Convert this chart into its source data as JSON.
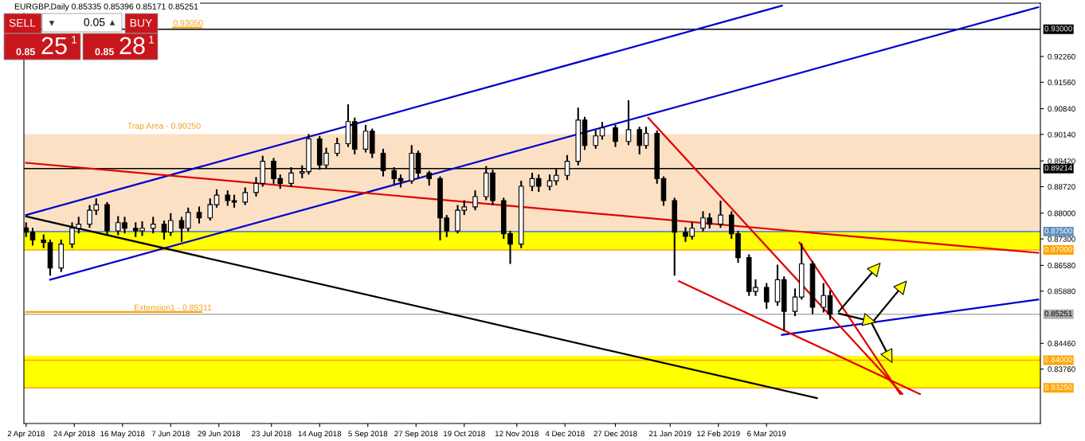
{
  "chart_data": {
    "type": "candlestick",
    "title": "EURGBP,Daily 0.85335 0.85396 0.85171 0.85251",
    "xlim": [
      "2018-04-01",
      "2019-07-09"
    ],
    "ylim": [
      0.8228,
      0.9371
    ],
    "xticks": [
      {
        "value": "2018-04-02",
        "label": "2 Apr 2018"
      },
      {
        "value": "2018-04-24",
        "label": "24 Apr 2018"
      },
      {
        "value": "2018-05-16",
        "label": "16 May 2018"
      },
      {
        "value": "2018-06-07",
        "label": "7 Jun 2018"
      },
      {
        "value": "2018-06-29",
        "label": "29 Jun 2018"
      },
      {
        "value": "2018-07-23",
        "label": "23 Jul 2018"
      },
      {
        "value": "2018-08-14",
        "label": "14 Aug 2018"
      },
      {
        "value": "2018-09-05",
        "label": "5 Sep 2018"
      },
      {
        "value": "2018-09-27",
        "label": "27 Sep 2018"
      },
      {
        "value": "2018-10-19",
        "label": "19 Oct 2018"
      },
      {
        "value": "2018-11-12",
        "label": "12 Nov 2018"
      },
      {
        "value": "2018-12-04",
        "label": "4 Dec 2018"
      },
      {
        "value": "2018-12-27",
        "label": "27 Dec 2018"
      },
      {
        "value": "2019-01-21",
        "label": "21 Jan 2019"
      },
      {
        "value": "2019-02-12",
        "label": "12 Feb 2019"
      },
      {
        "value": "2019-03-06",
        "label": "6 Mar 2019"
      }
    ],
    "yticks": [
      {
        "value": 0.9226,
        "label": "0.92260"
      },
      {
        "value": 0.9156,
        "label": "0.91560"
      },
      {
        "value": 0.9084,
        "label": "0.90840"
      },
      {
        "value": 0.9014,
        "label": "0.90140"
      },
      {
        "value": 0.8942,
        "label": "0.89420"
      },
      {
        "value": 0.8872,
        "label": "0.88720"
      },
      {
        "value": 0.88,
        "label": "0.88000"
      },
      {
        "value": 0.873,
        "label": "0.87300"
      },
      {
        "value": 0.8658,
        "label": "0.86580"
      },
      {
        "value": 0.8588,
        "label": "0.85880"
      },
      {
        "value": 0.8446,
        "label": "0.84460"
      },
      {
        "value": 0.8376,
        "label": "0.83760"
      }
    ],
    "grid": false,
    "bands": [
      {
        "axis": "y",
        "from": 0.875,
        "to": 0.9015,
        "color": "#fbe0c4"
      },
      {
        "axis": "y",
        "from": 0.87,
        "to": 0.875,
        "color": "#ffff00"
      },
      {
        "axis": "y",
        "from": 0.8325,
        "to": 0.8412,
        "color": "#ffff00"
      }
    ],
    "ref_lines": [
      {
        "axis": "y",
        "value": 0.93,
        "label": "0.93000",
        "color": "#000000"
      },
      {
        "axis": "y",
        "value": 0.89214,
        "label": "0.89214",
        "color": "#000000"
      },
      {
        "axis": "y",
        "value": 0.875,
        "label": "0.87500",
        "color": "#5b8dbb"
      },
      {
        "axis": "y",
        "value": 0.87,
        "label": "0.87000",
        "color": "#ffa500"
      },
      {
        "axis": "y",
        "value": 0.85251,
        "label": "0.85251",
        "color": "#b0b0b0"
      },
      {
        "axis": "y",
        "value": 0.84,
        "label": "0.84000",
        "color": "#ffa500"
      },
      {
        "axis": "y",
        "value": 0.8325,
        "label": "0.83250",
        "color": "#ffa500"
      }
    ],
    "series": [
      {
        "color": "#000000",
        "x": [
          "2018-04-02",
          "2018-04-05",
          "2018-04-10",
          "2018-04-13",
          "2018-04-18",
          "2018-04-23",
          "2018-04-26",
          "2018-05-01",
          "2018-05-04",
          "2018-05-09",
          "2018-05-14",
          "2018-05-17",
          "2018-05-22",
          "2018-05-25",
          "2018-05-30",
          "2018-06-04",
          "2018-06-07",
          "2018-06-12",
          "2018-06-15",
          "2018-06-20",
          "2018-06-25",
          "2018-06-28",
          "2018-07-03",
          "2018-07-06",
          "2018-07-11",
          "2018-07-16",
          "2018-07-19",
          "2018-07-24",
          "2018-07-27",
          "2018-08-01",
          "2018-08-06",
          "2018-08-09",
          "2018-08-14",
          "2018-08-17",
          "2018-08-22",
          "2018-08-27",
          "2018-08-30",
          "2018-09-04",
          "2018-09-07",
          "2018-09-12",
          "2018-09-17",
          "2018-09-20",
          "2018-09-25",
          "2018-09-28",
          "2018-10-03",
          "2018-10-08",
          "2018-10-11",
          "2018-10-16",
          "2018-10-19",
          "2018-10-24",
          "2018-10-29",
          "2018-11-01",
          "2018-11-06",
          "2018-11-09",
          "2018-11-14",
          "2018-11-19",
          "2018-11-22",
          "2018-11-27",
          "2018-11-30",
          "2018-12-05",
          "2018-12-10",
          "2018-12-13",
          "2018-12-18",
          "2018-12-21",
          "2018-12-27",
          "2019-01-02",
          "2019-01-07",
          "2019-01-10",
          "2019-01-15",
          "2019-01-18",
          "2019-01-23",
          "2019-01-28",
          "2019-01-31",
          "2019-02-05",
          "2019-02-08",
          "2019-02-13",
          "2019-02-18",
          "2019-02-21",
          "2019-02-26",
          "2019-03-01",
          "2019-03-06",
          "2019-03-11",
          "2019-03-14",
          "2019-03-19",
          "2019-03-22",
          "2019-03-27",
          "2019-04-01",
          "2019-04-04"
        ],
        "ohlc": [
          [
            0.876,
            0.8775,
            0.8735,
            0.8748
          ],
          [
            0.8748,
            0.876,
            0.8712,
            0.8727
          ],
          [
            0.8727,
            0.8742,
            0.8705,
            0.872
          ],
          [
            0.872,
            0.8728,
            0.863,
            0.8651
          ],
          [
            0.8651,
            0.8728,
            0.864,
            0.8716
          ],
          [
            0.8716,
            0.8775,
            0.8705,
            0.8759
          ],
          [
            0.8759,
            0.879,
            0.8745,
            0.877
          ],
          [
            0.877,
            0.8822,
            0.876,
            0.8808
          ],
          [
            0.8808,
            0.884,
            0.8795,
            0.8823
          ],
          [
            0.8823,
            0.883,
            0.874,
            0.8752
          ],
          [
            0.8752,
            0.8792,
            0.874,
            0.8774
          ],
          [
            0.8774,
            0.879,
            0.8745,
            0.8759
          ],
          [
            0.8759,
            0.8775,
            0.8735,
            0.8752
          ],
          [
            0.8752,
            0.8778,
            0.8738,
            0.8759
          ],
          [
            0.8759,
            0.879,
            0.8745,
            0.877
          ],
          [
            0.877,
            0.878,
            0.8728,
            0.8748
          ],
          [
            0.8748,
            0.88,
            0.8738,
            0.878
          ],
          [
            0.878,
            0.879,
            0.8722,
            0.8759
          ],
          [
            0.8759,
            0.8815,
            0.875,
            0.8802
          ],
          [
            0.8802,
            0.8818,
            0.8772,
            0.8787
          ],
          [
            0.8787,
            0.884,
            0.878,
            0.8823
          ],
          [
            0.8823,
            0.8865,
            0.8815,
            0.8849
          ],
          [
            0.8849,
            0.8862,
            0.882,
            0.8834
          ],
          [
            0.8834,
            0.885,
            0.8815,
            0.883
          ],
          [
            0.883,
            0.887,
            0.8822,
            0.8856
          ],
          [
            0.8856,
            0.8898,
            0.8845,
            0.8881
          ],
          [
            0.8881,
            0.8956,
            0.8872,
            0.8941
          ],
          [
            0.8941,
            0.895,
            0.888,
            0.8894
          ],
          [
            0.8894,
            0.8905,
            0.8866,
            0.8881
          ],
          [
            0.8881,
            0.8925,
            0.8872,
            0.8909
          ],
          [
            0.8909,
            0.893,
            0.8895,
            0.8913
          ],
          [
            0.8913,
            0.9015,
            0.8905,
            0.9002
          ],
          [
            0.9002,
            0.901,
            0.8918,
            0.8931
          ],
          [
            0.8931,
            0.8978,
            0.8922,
            0.8963
          ],
          [
            0.8963,
            0.9005,
            0.8955,
            0.8989
          ],
          [
            0.8989,
            0.9096,
            0.898,
            0.9049
          ],
          [
            0.9049,
            0.906,
            0.896,
            0.8974
          ],
          [
            0.8974,
            0.904,
            0.8965,
            0.9023
          ],
          [
            0.9023,
            0.903,
            0.895,
            0.8963
          ],
          [
            0.8963,
            0.8975,
            0.89,
            0.8916
          ],
          [
            0.8916,
            0.8925,
            0.8878,
            0.8894
          ],
          [
            0.8894,
            0.8905,
            0.887,
            0.8888
          ],
          [
            0.8888,
            0.8985,
            0.888,
            0.8963
          ],
          [
            0.8963,
            0.897,
            0.8895,
            0.8909
          ],
          [
            0.8909,
            0.8915,
            0.8875,
            0.8894
          ],
          [
            0.8894,
            0.89,
            0.8726,
            0.8787
          ],
          [
            0.8787,
            0.8795,
            0.8735,
            0.8752
          ],
          [
            0.8752,
            0.8822,
            0.8745,
            0.8808
          ],
          [
            0.8808,
            0.8835,
            0.8795,
            0.8817
          ],
          [
            0.8817,
            0.8862,
            0.8808,
            0.8845
          ],
          [
            0.8845,
            0.8928,
            0.8835,
            0.8909
          ],
          [
            0.8909,
            0.8918,
            0.8822,
            0.8834
          ],
          [
            0.8834,
            0.8842,
            0.873,
            0.8744
          ],
          [
            0.8744,
            0.8752,
            0.8662,
            0.8716
          ],
          [
            0.8716,
            0.8888,
            0.8705,
            0.8873
          ],
          [
            0.8873,
            0.891,
            0.886,
            0.8894
          ],
          [
            0.8894,
            0.8905,
            0.8858,
            0.8873
          ],
          [
            0.8873,
            0.8905,
            0.8862,
            0.8888
          ],
          [
            0.8888,
            0.892,
            0.8876,
            0.8903
          ],
          [
            0.8903,
            0.8958,
            0.889,
            0.8941
          ],
          [
            0.8941,
            0.9087,
            0.893,
            0.9053
          ],
          [
            0.9053,
            0.9062,
            0.8972,
            0.8984
          ],
          [
            0.8984,
            0.9026,
            0.8975,
            0.901
          ],
          [
            0.901,
            0.9048,
            0.9,
            0.9032
          ],
          [
            0.9032,
            0.904,
            0.898,
            0.8995
          ],
          [
            0.8995,
            0.9107,
            0.8985,
            0.9027
          ],
          [
            0.9027,
            0.9035,
            0.896,
            0.8984
          ],
          [
            0.8984,
            0.9035,
            0.8975,
            0.9017
          ],
          [
            0.9017,
            0.9025,
            0.888,
            0.8894
          ],
          [
            0.8894,
            0.89,
            0.882,
            0.8834
          ],
          [
            0.8834,
            0.8842,
            0.863,
            0.8748
          ],
          [
            0.8748,
            0.8762,
            0.8722,
            0.8737
          ],
          [
            0.8737,
            0.8775,
            0.8728,
            0.8759
          ],
          [
            0.8759,
            0.8805,
            0.875,
            0.8787
          ],
          [
            0.8787,
            0.88,
            0.8758,
            0.877
          ],
          [
            0.877,
            0.8834,
            0.876,
            0.8795
          ],
          [
            0.8795,
            0.8805,
            0.873,
            0.8744
          ],
          [
            0.8744,
            0.8752,
            0.8665,
            0.8679
          ],
          [
            0.8679,
            0.8688,
            0.8575,
            0.8587
          ],
          [
            0.8587,
            0.862,
            0.8575,
            0.8598
          ],
          [
            0.8598,
            0.861,
            0.854,
            0.8559
          ],
          [
            0.8559,
            0.866,
            0.8548,
            0.8619
          ],
          [
            0.8619,
            0.8628,
            0.848,
            0.8533
          ],
          [
            0.8533,
            0.8595,
            0.852,
            0.8572
          ],
          [
            0.8572,
            0.8718,
            0.8565,
            0.8662
          ],
          [
            0.8662,
            0.867,
            0.8525,
            0.8544
          ],
          [
            0.8544,
            0.861,
            0.853,
            0.8576
          ],
          [
            0.8576,
            0.859,
            0.851,
            0.8525
          ]
        ]
      },
      {
        "type": "line",
        "color": "#0000cd",
        "x": [
          "2018-04-02",
          "2019-03-13"
        ],
        "values": [
          0.8795,
          0.9364
        ]
      },
      {
        "type": "line",
        "color": "#0000cd",
        "x": [
          "2018-04-13",
          "2019-07-08"
        ],
        "values": [
          0.8619,
          0.936
        ]
      },
      {
        "type": "line",
        "color": "#0000cd",
        "x": [
          "2019-03-13",
          "2019-07-08"
        ],
        "values": [
          0.8469,
          0.8565
        ]
      },
      {
        "type": "line",
        "color": "#e00000",
        "x": [
          "2018-04-02",
          "2019-07-08"
        ],
        "values": [
          0.8937,
          0.8692
        ]
      },
      {
        "type": "line",
        "color": "#000000",
        "x": [
          "2018-04-02",
          "2019-03-29"
        ],
        "values": [
          0.8791,
          0.8297
        ]
      },
      {
        "type": "line",
        "color": "#e00000",
        "x": [
          "2019-01-11",
          "2019-05-07"
        ],
        "values": [
          0.9059,
          0.8308
        ]
      },
      {
        "type": "line",
        "color": "#e00000",
        "x": [
          "2019-01-25",
          "2019-05-15"
        ],
        "values": [
          0.8615,
          0.8308
        ]
      },
      {
        "type": "line",
        "color": "#e00000",
        "x": [
          "2019-03-21",
          "2019-05-06"
        ],
        "values": [
          0.872,
          0.8308
        ]
      },
      {
        "type": "line",
        "color": "#ffa500",
        "x": [
          "2018-04-02",
          "2018-06-21"
        ],
        "values": [
          0.85311,
          0.85311
        ]
      },
      {
        "type": "line",
        "color": "#ffa500",
        "x": [
          "2018-06-08",
          "2018-06-21"
        ],
        "values": [
          0.9305,
          0.9305
        ]
      },
      {
        "type": "line",
        "color": "#000000",
        "marker": "triangle",
        "x": [
          "2019-04-08",
          "2019-04-25"
        ],
        "values": [
          0.8533,
          0.8651
        ]
      },
      {
        "type": "line",
        "color": "#000000",
        "marker": "triangle",
        "x": [
          "2019-04-08",
          "2019-04-22"
        ],
        "values": [
          0.8527,
          0.8507
        ]
      },
      {
        "type": "line",
        "color": "#000000",
        "marker": "triangle",
        "x": [
          "2019-04-23",
          "2019-05-07"
        ],
        "values": [
          0.8501,
          0.8602
        ]
      },
      {
        "type": "line",
        "color": "#000000",
        "marker": "triangle",
        "x": [
          "2019-04-23",
          "2019-05-01"
        ],
        "values": [
          0.8501,
          0.8409
        ]
      }
    ],
    "annotations": [
      "SELL",
      "0.05",
      "BUY",
      "0.85",
      "25",
      "1",
      "0.85",
      "28",
      "1",
      {
        "text": "Trap Area - 0.90250",
        "x": "2018-06-04",
        "y": 0.9025
      },
      {
        "text": "Extension1 - 0.85311",
        "x": "2018-06-08",
        "y": 0.85311
      },
      {
        "text": "0.93050",
        "x": "2018-06-15",
        "y": 0.9305
      }
    ]
  }
}
